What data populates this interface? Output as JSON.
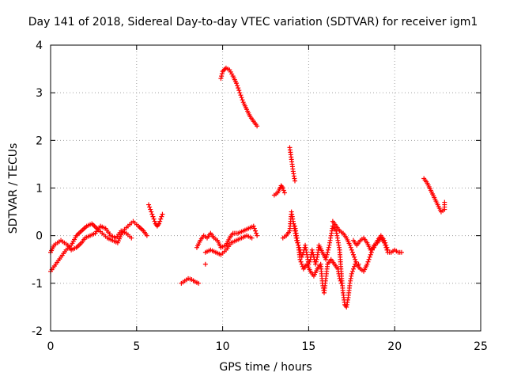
{
  "chart_data": {
    "type": "scatter",
    "title": "Day 141 of 2018, Sidereal Day-to-day VTEC variation (SDTVAR) for receiver igm1",
    "xlabel": "GPS time / hours",
    "ylabel": "SDTVAR / TECUs",
    "xlim": [
      0,
      25
    ],
    "ylim": [
      -2,
      4
    ],
    "xticks": [
      0,
      5,
      10,
      15,
      20,
      25
    ],
    "yticks": [
      -2,
      -1,
      0,
      1,
      2,
      3,
      4
    ],
    "grid": true,
    "marker": "+",
    "color": "#ff0000",
    "series": [
      {
        "name": "SDTVAR",
        "polylines": [
          [
            [
              0.0,
              -0.75
            ],
            [
              0.3,
              -0.6
            ],
            [
              0.6,
              -0.45
            ],
            [
              0.9,
              -0.3
            ],
            [
              1.2,
              -0.2
            ],
            [
              1.5,
              0.0
            ],
            [
              1.8,
              0.1
            ],
            [
              2.1,
              0.2
            ],
            [
              2.4,
              0.25
            ],
            [
              2.7,
              0.15
            ],
            [
              3.0,
              0.05
            ],
            [
              3.3,
              -0.05
            ],
            [
              3.6,
              -0.1
            ],
            [
              3.9,
              -0.15
            ],
            [
              4.2,
              0.1
            ],
            [
              4.5,
              0.2
            ],
            [
              4.8,
              0.3
            ],
            [
              5.1,
              0.2
            ],
            [
              5.4,
              0.1
            ],
            [
              5.6,
              0.0
            ]
          ],
          [
            [
              0.0,
              -0.35
            ],
            [
              0.2,
              -0.2
            ],
            [
              0.4,
              -0.15
            ],
            [
              0.6,
              -0.1
            ],
            [
              0.8,
              -0.15
            ],
            [
              1.0,
              -0.2
            ],
            [
              1.2,
              -0.3
            ],
            [
              1.5,
              -0.25
            ],
            [
              1.8,
              -0.15
            ],
            [
              2.0,
              -0.05
            ],
            [
              2.3,
              0.0
            ],
            [
              2.6,
              0.05
            ],
            [
              2.9,
              0.2
            ],
            [
              3.2,
              0.15
            ],
            [
              3.5,
              0.0
            ],
            [
              3.8,
              -0.05
            ],
            [
              4.1,
              0.1
            ],
            [
              4.4,
              0.05
            ],
            [
              4.7,
              -0.05
            ]
          ],
          [
            [
              5.7,
              0.65
            ],
            [
              5.8,
              0.55
            ],
            [
              5.9,
              0.45
            ],
            [
              6.0,
              0.35
            ],
            [
              6.1,
              0.25
            ],
            [
              6.2,
              0.2
            ],
            [
              6.3,
              0.25
            ],
            [
              6.4,
              0.35
            ],
            [
              6.5,
              0.45
            ]
          ],
          [
            [
              7.6,
              -1.0
            ],
            [
              7.8,
              -0.95
            ],
            [
              8.0,
              -0.9
            ],
            [
              8.2,
              -0.92
            ],
            [
              8.4,
              -0.97
            ],
            [
              8.6,
              -1.0
            ]
          ],
          [
            [
              8.5,
              -0.25
            ],
            [
              8.7,
              -0.1
            ],
            [
              8.9,
              0.0
            ],
            [
              9.1,
              -0.05
            ],
            [
              9.3,
              0.05
            ],
            [
              9.5,
              -0.05
            ],
            [
              9.7,
              -0.1
            ],
            [
              9.9,
              -0.25
            ],
            [
              10.2,
              -0.2
            ],
            [
              10.4,
              -0.05
            ],
            [
              10.6,
              0.05
            ],
            [
              10.9,
              0.05
            ],
            [
              11.2,
              0.1
            ],
            [
              11.5,
              0.15
            ],
            [
              11.8,
              0.2
            ],
            [
              12.0,
              0.0
            ]
          ],
          [
            [
              9.0,
              -0.35
            ],
            [
              9.3,
              -0.3
            ],
            [
              9.6,
              -0.35
            ],
            [
              9.9,
              -0.4
            ],
            [
              10.2,
              -0.3
            ],
            [
              10.5,
              -0.15
            ],
            [
              10.8,
              -0.1
            ],
            [
              11.1,
              -0.05
            ],
            [
              11.4,
              0.0
            ],
            [
              11.7,
              -0.05
            ]
          ],
          [
            [
              9.9,
              3.3
            ],
            [
              10.0,
              3.45
            ],
            [
              10.2,
              3.52
            ],
            [
              10.4,
              3.48
            ],
            [
              10.6,
              3.35
            ],
            [
              10.8,
              3.2
            ],
            [
              11.0,
              3.0
            ],
            [
              11.2,
              2.8
            ],
            [
              11.4,
              2.65
            ],
            [
              11.6,
              2.5
            ],
            [
              11.8,
              2.4
            ],
            [
              12.0,
              2.3
            ]
          ],
          [
            [
              13.0,
              0.85
            ],
            [
              13.2,
              0.9
            ],
            [
              13.4,
              1.05
            ],
            [
              13.5,
              1.0
            ],
            [
              13.6,
              0.9
            ]
          ],
          [
            [
              13.9,
              1.85
            ],
            [
              14.0,
              1.6
            ],
            [
              14.1,
              1.35
            ],
            [
              14.2,
              1.15
            ]
          ],
          [
            [
              13.5,
              -0.05
            ],
            [
              13.7,
              0.0
            ],
            [
              13.9,
              0.1
            ],
            [
              14.0,
              0.5
            ],
            [
              14.1,
              0.3
            ],
            [
              14.2,
              0.1
            ],
            [
              14.3,
              -0.1
            ],
            [
              14.4,
              -0.2
            ],
            [
              14.5,
              -0.3
            ],
            [
              14.6,
              -0.45
            ],
            [
              14.7,
              -0.35
            ],
            [
              14.8,
              -0.2
            ],
            [
              14.9,
              -0.4
            ],
            [
              15.0,
              -0.6
            ],
            [
              15.1,
              -0.5
            ],
            [
              15.2,
              -0.3
            ],
            [
              15.3,
              -0.45
            ],
            [
              15.4,
              -0.6
            ],
            [
              15.5,
              -0.45
            ],
            [
              15.6,
              -0.2
            ],
            [
              15.8,
              -0.35
            ],
            [
              16.0,
              -0.5
            ],
            [
              16.2,
              -0.2
            ],
            [
              16.4,
              0.2
            ],
            [
              16.6,
              0.1
            ],
            [
              16.8,
              -0.3
            ],
            [
              16.9,
              -0.8
            ],
            [
              17.0,
              -1.2
            ],
            [
              17.1,
              -1.45
            ],
            [
              17.2,
              -1.5
            ],
            [
              17.3,
              -1.3
            ],
            [
              17.4,
              -1.0
            ],
            [
              17.5,
              -0.8
            ],
            [
              17.7,
              -0.6
            ]
          ],
          [
            [
              14.2,
              0.2
            ],
            [
              14.3,
              0.0
            ],
            [
              14.4,
              -0.2
            ],
            [
              14.5,
              -0.5
            ],
            [
              14.7,
              -0.7
            ],
            [
              14.9,
              -0.6
            ],
            [
              15.1,
              -0.75
            ],
            [
              15.3,
              -0.85
            ],
            [
              15.5,
              -0.7
            ],
            [
              15.7,
              -0.6
            ],
            [
              15.8,
              -1.0
            ],
            [
              15.9,
              -1.2
            ],
            [
              16.0,
              -0.9
            ],
            [
              16.1,
              -0.6
            ],
            [
              16.3,
              -0.5
            ],
            [
              16.5,
              -0.6
            ],
            [
              16.7,
              -0.7
            ],
            [
              16.8,
              -0.9
            ],
            [
              16.9,
              -1.0
            ]
          ],
          [
            [
              16.4,
              0.3
            ],
            [
              16.6,
              0.2
            ],
            [
              16.8,
              0.1
            ],
            [
              17.0,
              0.05
            ],
            [
              17.2,
              -0.05
            ],
            [
              17.4,
              -0.2
            ],
            [
              17.6,
              -0.4
            ],
            [
              17.8,
              -0.6
            ],
            [
              18.0,
              -0.7
            ],
            [
              18.2,
              -0.75
            ],
            [
              18.4,
              -0.6
            ],
            [
              18.6,
              -0.4
            ],
            [
              18.8,
              -0.2
            ],
            [
              19.0,
              -0.15
            ],
            [
              19.2,
              -0.05
            ],
            [
              19.4,
              -0.15
            ],
            [
              19.6,
              -0.35
            ],
            [
              19.8,
              -0.35
            ],
            [
              20.0,
              -0.3
            ],
            [
              20.2,
              -0.35
            ],
            [
              20.4,
              -0.35
            ]
          ],
          [
            [
              17.6,
              -0.1
            ],
            [
              17.8,
              -0.2
            ],
            [
              18.0,
              -0.1
            ],
            [
              18.2,
              -0.05
            ],
            [
              18.4,
              -0.15
            ],
            [
              18.6,
              -0.3
            ],
            [
              18.8,
              -0.25
            ],
            [
              19.0,
              -0.1
            ],
            [
              19.2,
              0.0
            ],
            [
              19.4,
              -0.1
            ],
            [
              19.6,
              -0.3
            ]
          ],
          [
            [
              21.7,
              1.2
            ],
            [
              21.9,
              1.1
            ],
            [
              22.1,
              0.95
            ],
            [
              22.3,
              0.8
            ],
            [
              22.5,
              0.65
            ],
            [
              22.7,
              0.5
            ],
            [
              22.9,
              0.55
            ],
            [
              22.9,
              0.7
            ]
          ]
        ],
        "points": [
          [
            9.0,
            -0.6
          ],
          [
            17.9,
            -0.6
          ]
        ]
      }
    ]
  }
}
